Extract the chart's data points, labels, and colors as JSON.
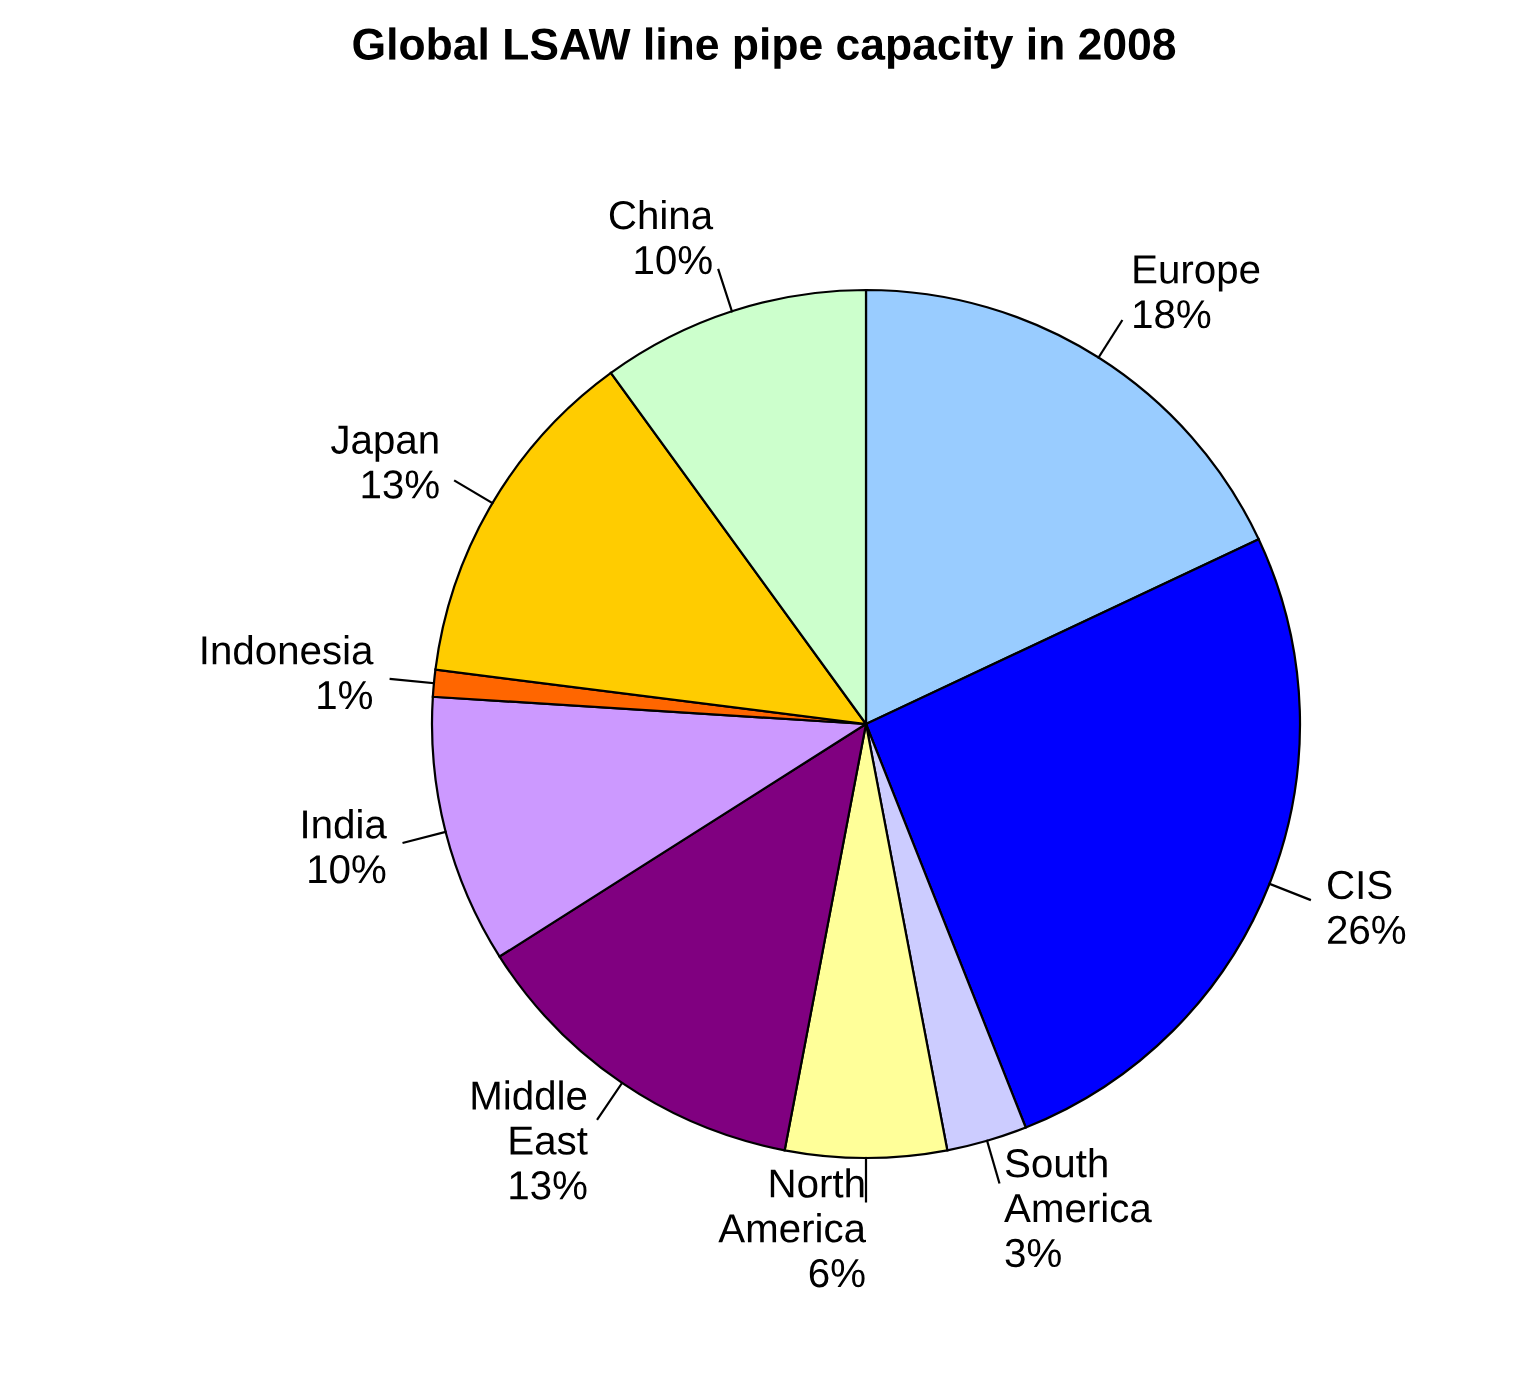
{
  "chart_data": {
    "type": "pie",
    "title": "Global LSAW line pipe capacity in 2008",
    "categories": [
      "Europe",
      "CIS",
      "South\nAmerica",
      "North\nAmerica",
      "Middle\nEast",
      "India",
      "Indonesia",
      "Japan",
      "China"
    ],
    "values": [
      18,
      26,
      3,
      6,
      13,
      10,
      1,
      13,
      10
    ],
    "value_labels": [
      "18%",
      "26%",
      "3%",
      "6%",
      "13%",
      "10%",
      "1%",
      "13%",
      "10%"
    ],
    "colors": [
      "#99ccff",
      "#0000ff",
      "#ccccff",
      "#ffff99",
      "#800080",
      "#cc99ff",
      "#ff6600",
      "#ffcc00",
      "#ccffcc"
    ],
    "legend": false
  }
}
